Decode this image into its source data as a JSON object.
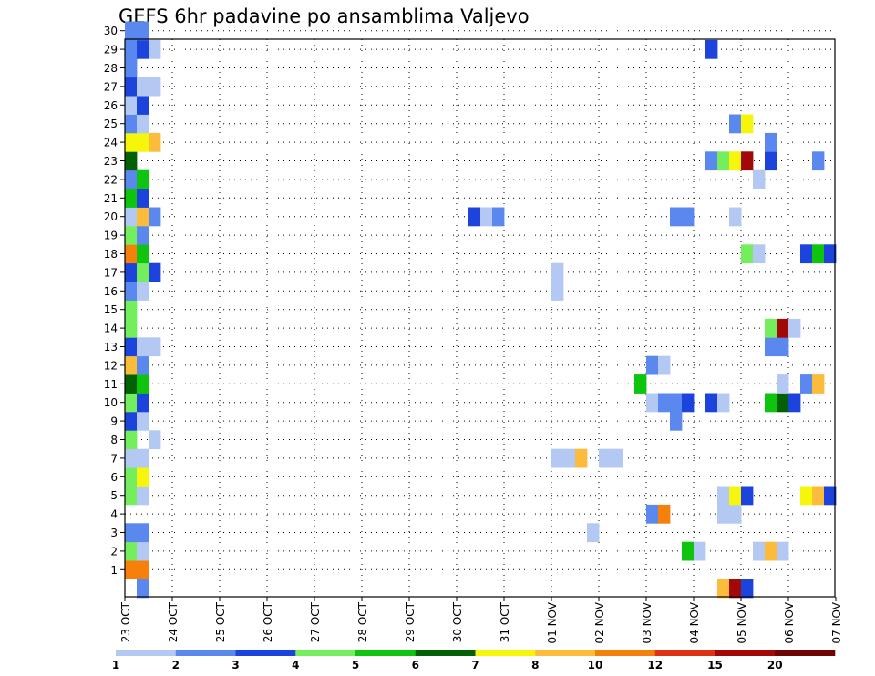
{
  "title": "GEFS 6hr padavine po ansamblima Valjevo",
  "chart_data": {
    "type": "heatmap",
    "title": "GEFS 6hr padavine po ansamblima Valjevo",
    "xlabel": "",
    "ylabel": "",
    "x_ticks": [
      "23 OCT",
      "24 OCT",
      "25 OCT",
      "26 OCT",
      "27 OCT",
      "28 OCT",
      "29 OCT",
      "30 OCT",
      "31 OCT",
      "01 NOV",
      "02 NOV",
      "03 NOV",
      "04 NOV",
      "05 NOV",
      "06 NOV",
      "07 NOV"
    ],
    "y_ticks": [
      1,
      2,
      3,
      4,
      5,
      6,
      7,
      8,
      9,
      10,
      11,
      12,
      13,
      14,
      15,
      16,
      17,
      18,
      19,
      20,
      21,
      22,
      23,
      24,
      25,
      26,
      27,
      28,
      29,
      30
    ],
    "time_step_hours": 6,
    "grid": true,
    "colorbar": {
      "labels": [
        "1",
        "2",
        "3",
        "4",
        "5",
        "6",
        "7",
        "8",
        "10",
        "12",
        "15",
        "20"
      ],
      "colors": [
        "#b4c8f4",
        "#5a88ee",
        "#1c44dc",
        "#74ee5c",
        "#0ec40e",
        "#046004",
        "#f6f60a",
        "#fbbc3c",
        "#f6800c",
        "#de3214",
        "#a30808",
        "#6e0404"
      ]
    },
    "cells": [
      {
        "member": 0,
        "step": 1,
        "color": "#5a88ee"
      },
      {
        "member": 0,
        "step": 50,
        "color": "#fbbc3c"
      },
      {
        "member": 0,
        "step": 51,
        "color": "#a30808"
      },
      {
        "member": 0,
        "step": 52,
        "color": "#1c44dc"
      },
      {
        "member": 1,
        "step": 0,
        "color": "#f6800c"
      },
      {
        "member": 1,
        "step": 1,
        "color": "#f6800c"
      },
      {
        "member": 2,
        "step": 0,
        "color": "#74ee5c"
      },
      {
        "member": 2,
        "step": 1,
        "color": "#b4c8f4"
      },
      {
        "member": 2,
        "step": 47,
        "color": "#0ec40e"
      },
      {
        "member": 2,
        "step": 48,
        "color": "#b4c8f4"
      },
      {
        "member": 2,
        "step": 53,
        "color": "#b4c8f4"
      },
      {
        "member": 2,
        "step": 54,
        "color": "#fbbc3c"
      },
      {
        "member": 2,
        "step": 55,
        "color": "#b4c8f4"
      },
      {
        "member": 3,
        "step": 0,
        "color": "#5a88ee"
      },
      {
        "member": 3,
        "step": 1,
        "color": "#5a88ee"
      },
      {
        "member": 3,
        "step": 39,
        "color": "#b4c8f4"
      },
      {
        "member": 4,
        "step": 44,
        "color": "#5a88ee"
      },
      {
        "member": 4,
        "step": 45,
        "color": "#f6800c"
      },
      {
        "member": 4,
        "step": 50,
        "color": "#b4c8f4"
      },
      {
        "member": 4,
        "step": 51,
        "color": "#b4c8f4"
      },
      {
        "member": 5,
        "step": 0,
        "color": "#74ee5c"
      },
      {
        "member": 5,
        "step": 1,
        "color": "#b4c8f4"
      },
      {
        "member": 5,
        "step": 50,
        "color": "#b4c8f4"
      },
      {
        "member": 5,
        "step": 51,
        "color": "#f6f60a"
      },
      {
        "member": 5,
        "step": 52,
        "color": "#1c44dc"
      },
      {
        "member": 5,
        "step": 57,
        "color": "#f6f60a"
      },
      {
        "member": 5,
        "step": 58,
        "color": "#fbbc3c"
      },
      {
        "member": 5,
        "step": 59,
        "color": "#1c44dc"
      },
      {
        "member": 6,
        "step": 0,
        "color": "#74ee5c"
      },
      {
        "member": 6,
        "step": 1,
        "color": "#f6f60a"
      },
      {
        "member": 7,
        "step": 0,
        "color": "#b4c8f4"
      },
      {
        "member": 7,
        "step": 1,
        "color": "#b4c8f4"
      },
      {
        "member": 7,
        "step": 36,
        "color": "#b4c8f4"
      },
      {
        "member": 7,
        "step": 37,
        "color": "#b4c8f4"
      },
      {
        "member": 7,
        "step": 38,
        "color": "#fbbc3c"
      },
      {
        "member": 7,
        "step": 40,
        "color": "#b4c8f4"
      },
      {
        "member": 7,
        "step": 41,
        "color": "#b4c8f4"
      },
      {
        "member": 8,
        "step": 0,
        "color": "#74ee5c"
      },
      {
        "member": 8,
        "step": 2,
        "color": "#b4c8f4"
      },
      {
        "member": 9,
        "step": 0,
        "color": "#1c44dc"
      },
      {
        "member": 9,
        "step": 1,
        "color": "#b4c8f4"
      },
      {
        "member": 9,
        "step": 46,
        "color": "#5a88ee"
      },
      {
        "member": 10,
        "step": 0,
        "color": "#74ee5c"
      },
      {
        "member": 10,
        "step": 1,
        "color": "#1c44dc"
      },
      {
        "member": 10,
        "step": 44,
        "color": "#b4c8f4"
      },
      {
        "member": 10,
        "step": 45,
        "color": "#5a88ee"
      },
      {
        "member": 10,
        "step": 46,
        "color": "#5a88ee"
      },
      {
        "member": 10,
        "step": 47,
        "color": "#1c44dc"
      },
      {
        "member": 10,
        "step": 49,
        "color": "#1c44dc"
      },
      {
        "member": 10,
        "step": 50,
        "color": "#b4c8f4"
      },
      {
        "member": 10,
        "step": 54,
        "color": "#0ec40e"
      },
      {
        "member": 10,
        "step": 55,
        "color": "#046004"
      },
      {
        "member": 10,
        "step": 56,
        "color": "#1c44dc"
      },
      {
        "member": 11,
        "step": 0,
        "color": "#046004"
      },
      {
        "member": 11,
        "step": 1,
        "color": "#0ec40e"
      },
      {
        "member": 11,
        "step": 43,
        "color": "#0ec40e"
      },
      {
        "member": 11,
        "step": 55,
        "color": "#b4c8f4"
      },
      {
        "member": 11,
        "step": 57,
        "color": "#5a88ee"
      },
      {
        "member": 11,
        "step": 58,
        "color": "#fbbc3c"
      },
      {
        "member": 12,
        "step": 0,
        "color": "#fbbc3c"
      },
      {
        "member": 12,
        "step": 1,
        "color": "#5a88ee"
      },
      {
        "member": 12,
        "step": 44,
        "color": "#5a88ee"
      },
      {
        "member": 12,
        "step": 45,
        "color": "#b4c8f4"
      },
      {
        "member": 13,
        "step": 0,
        "color": "#1c44dc"
      },
      {
        "member": 13,
        "step": 1,
        "color": "#b4c8f4"
      },
      {
        "member": 13,
        "step": 2,
        "color": "#b4c8f4"
      },
      {
        "member": 13,
        "step": 54,
        "color": "#5a88ee"
      },
      {
        "member": 13,
        "step": 55,
        "color": "#5a88ee"
      },
      {
        "member": 14,
        "step": 0,
        "color": "#74ee5c"
      },
      {
        "member": 14,
        "step": 54,
        "color": "#74ee5c"
      },
      {
        "member": 14,
        "step": 55,
        "color": "#a30808"
      },
      {
        "member": 14,
        "step": 56,
        "color": "#b4c8f4"
      },
      {
        "member": 15,
        "step": 0,
        "color": "#74ee5c"
      },
      {
        "member": 16,
        "step": 0,
        "color": "#5a88ee"
      },
      {
        "member": 16,
        "step": 1,
        "color": "#b4c8f4"
      },
      {
        "member": 16,
        "step": 36,
        "color": "#b4c8f4"
      },
      {
        "member": 17,
        "step": 0,
        "color": "#1c44dc"
      },
      {
        "member": 17,
        "step": 1,
        "color": "#74ee5c"
      },
      {
        "member": 17,
        "step": 2,
        "color": "#1c44dc"
      },
      {
        "member": 17,
        "step": 36,
        "color": "#b4c8f4"
      },
      {
        "member": 18,
        "step": 0,
        "color": "#f6800c"
      },
      {
        "member": 18,
        "step": 1,
        "color": "#0ec40e"
      },
      {
        "member": 18,
        "step": 52,
        "color": "#74ee5c"
      },
      {
        "member": 18,
        "step": 53,
        "color": "#b4c8f4"
      },
      {
        "member": 18,
        "step": 57,
        "color": "#1c44dc"
      },
      {
        "member": 18,
        "step": 58,
        "color": "#0ec40e"
      },
      {
        "member": 18,
        "step": 59,
        "color": "#1c44dc"
      },
      {
        "member": 19,
        "step": 0,
        "color": "#74ee5c"
      },
      {
        "member": 19,
        "step": 1,
        "color": "#5a88ee"
      },
      {
        "member": 20,
        "step": 0,
        "color": "#b4c8f4"
      },
      {
        "member": 20,
        "step": 1,
        "color": "#fbbc3c"
      },
      {
        "member": 20,
        "step": 2,
        "color": "#5a88ee"
      },
      {
        "member": 20,
        "step": 29,
        "color": "#1c44dc"
      },
      {
        "member": 20,
        "step": 30,
        "color": "#b4c8f4"
      },
      {
        "member": 20,
        "step": 31,
        "color": "#5a88ee"
      },
      {
        "member": 20,
        "step": 46,
        "color": "#5a88ee"
      },
      {
        "member": 20,
        "step": 47,
        "color": "#5a88ee"
      },
      {
        "member": 20,
        "step": 51,
        "color": "#b4c8f4"
      },
      {
        "member": 21,
        "step": 0,
        "color": "#0ec40e"
      },
      {
        "member": 21,
        "step": 1,
        "color": "#1c44dc"
      },
      {
        "member": 22,
        "step": 0,
        "color": "#5a88ee"
      },
      {
        "member": 22,
        "step": 1,
        "color": "#0ec40e"
      },
      {
        "member": 22,
        "step": 53,
        "color": "#b4c8f4"
      },
      {
        "member": 23,
        "step": 0,
        "color": "#046004"
      },
      {
        "member": 23,
        "step": 49,
        "color": "#5a88ee"
      },
      {
        "member": 23,
        "step": 50,
        "color": "#74ee5c"
      },
      {
        "member": 23,
        "step": 51,
        "color": "#f6f60a"
      },
      {
        "member": 23,
        "step": 52,
        "color": "#a30808"
      },
      {
        "member": 23,
        "step": 54,
        "color": "#1c44dc"
      },
      {
        "member": 23,
        "step": 58,
        "color": "#5a88ee"
      },
      {
        "member": 24,
        "step": 0,
        "color": "#f6f60a"
      },
      {
        "member": 24,
        "step": 1,
        "color": "#f6f60a"
      },
      {
        "member": 24,
        "step": 2,
        "color": "#fbbc3c"
      },
      {
        "member": 24,
        "step": 54,
        "color": "#5a88ee"
      },
      {
        "member": 25,
        "step": 0,
        "color": "#5a88ee"
      },
      {
        "member": 25,
        "step": 1,
        "color": "#b4c8f4"
      },
      {
        "member": 25,
        "step": 51,
        "color": "#5a88ee"
      },
      {
        "member": 25,
        "step": 52,
        "color": "#f6f60a"
      },
      {
        "member": 26,
        "step": 0,
        "color": "#b4c8f4"
      },
      {
        "member": 26,
        "step": 1,
        "color": "#1c44dc"
      },
      {
        "member": 27,
        "step": 0,
        "color": "#1c44dc"
      },
      {
        "member": 27,
        "step": 1,
        "color": "#b4c8f4"
      },
      {
        "member": 27,
        "step": 2,
        "color": "#b4c8f4"
      },
      {
        "member": 28,
        "step": 0,
        "color": "#5a88ee"
      },
      {
        "member": 29,
        "step": 0,
        "color": "#5a88ee"
      },
      {
        "member": 29,
        "step": 1,
        "color": "#1c44dc"
      },
      {
        "member": 29,
        "step": 2,
        "color": "#b4c8f4"
      },
      {
        "member": 29,
        "step": 49,
        "color": "#1c44dc"
      },
      {
        "member": 30,
        "step": 0,
        "color": "#5a88ee"
      },
      {
        "member": 30,
        "step": 1,
        "color": "#5a88ee"
      }
    ]
  }
}
